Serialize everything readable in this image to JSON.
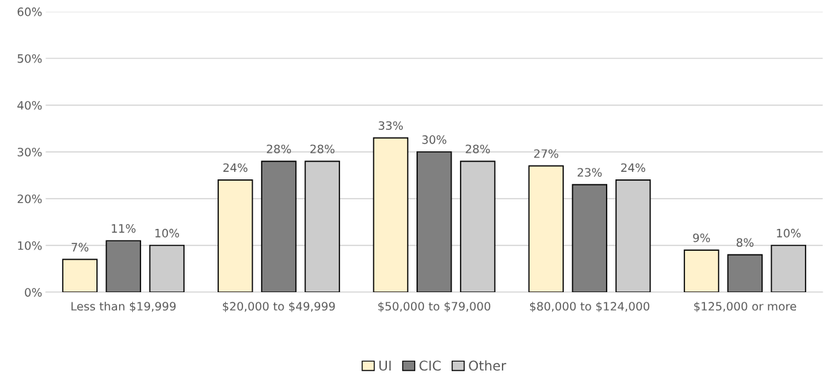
{
  "chart_data": {
    "type": "bar",
    "categories": [
      "Less than $19,999",
      "$20,000 to $49,999",
      "$50,000 to $79,000",
      "$80,000 to $124,000",
      "$125,000 or more"
    ],
    "series": [
      {
        "name": "UI",
        "color": "#fff2cc",
        "values": [
          7,
          24,
          33,
          27,
          9
        ],
        "value_labels": [
          "7%",
          "24%",
          "33%",
          "27%",
          "9%"
        ]
      },
      {
        "name": "CIC",
        "color": "#808080",
        "values": [
          11,
          28,
          30,
          23,
          8
        ],
        "value_labels": [
          "11%",
          "28%",
          "30%",
          "23%",
          "8%"
        ]
      },
      {
        "name": "Other",
        "color": "#cccccc",
        "values": [
          10,
          28,
          28,
          24,
          10
        ],
        "value_labels": [
          "10%",
          "28%",
          "28%",
          "24%",
          "10%"
        ]
      }
    ],
    "ylim": [
      0,
      60
    ],
    "yticks": [
      {
        "value": 0,
        "label": "0%"
      },
      {
        "value": 10,
        "label": "10%"
      },
      {
        "value": 20,
        "label": "20%"
      },
      {
        "value": 30,
        "label": "30%"
      },
      {
        "value": 40,
        "label": "40%"
      },
      {
        "value": 50,
        "label": "50%"
      },
      {
        "value": 60,
        "label": "60%"
      }
    ],
    "grid": "y",
    "legend": "bottom"
  }
}
